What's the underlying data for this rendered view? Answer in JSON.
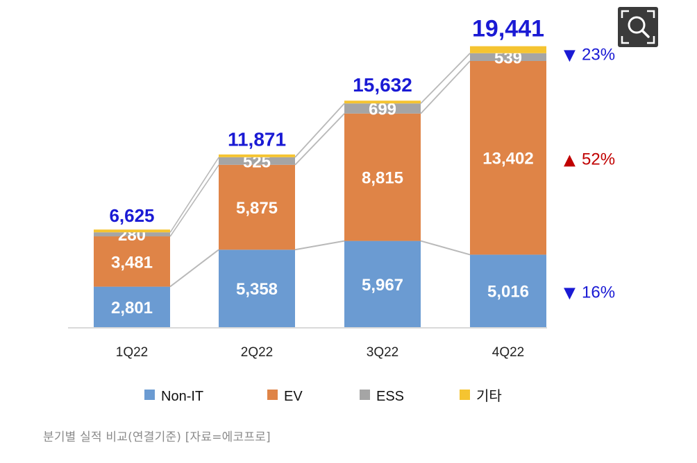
{
  "chart_data": {
    "type": "bar",
    "stacked": true,
    "categories": [
      "1Q22",
      "2Q22",
      "3Q22",
      "4Q22"
    ],
    "series": [
      {
        "name": "Non-IT",
        "color": "#6b9bd2",
        "values": [
          2801,
          5358,
          5967,
          5016
        ],
        "labels": [
          "2,801",
          "5,358",
          "5,967",
          "5,016"
        ]
      },
      {
        "name": "EV",
        "color": "#df8447",
        "values": [
          3481,
          5875,
          8815,
          13402
        ],
        "labels": [
          "3,481",
          "5,875",
          "8,815",
          "13,402"
        ]
      },
      {
        "name": "ESS",
        "color": "#a5a5a5",
        "values": [
          280,
          525,
          699,
          539
        ],
        "labels": [
          "280",
          "525",
          "699",
          "539"
        ]
      },
      {
        "name": "기타",
        "color": "#f5c431",
        "values": [
          63,
          113,
          151,
          484
        ]
      }
    ],
    "totals": [
      6625,
      11871,
      15632,
      19441
    ],
    "total_labels": [
      "6,625",
      "11,871",
      "15,632",
      "19,441"
    ],
    "annotations": [
      {
        "series": "ESS",
        "direction": "down",
        "symbol": "▼",
        "text": "23%",
        "color": "#1a1ad4"
      },
      {
        "series": "EV",
        "direction": "up",
        "symbol": "▲",
        "text": "52%",
        "color": "#c00000"
      },
      {
        "series": "Non-IT",
        "direction": "down",
        "symbol": "▼",
        "text": "16%",
        "color": "#1a1ad4"
      }
    ],
    "legend_position": "bottom",
    "grid": false,
    "title": "",
    "xlabel": "",
    "ylabel": ""
  },
  "caption": "분기별 실적 비교(연결기준) [자료=에코프로]",
  "zoom_button": {
    "icon": "zoom-magnifier-icon"
  }
}
